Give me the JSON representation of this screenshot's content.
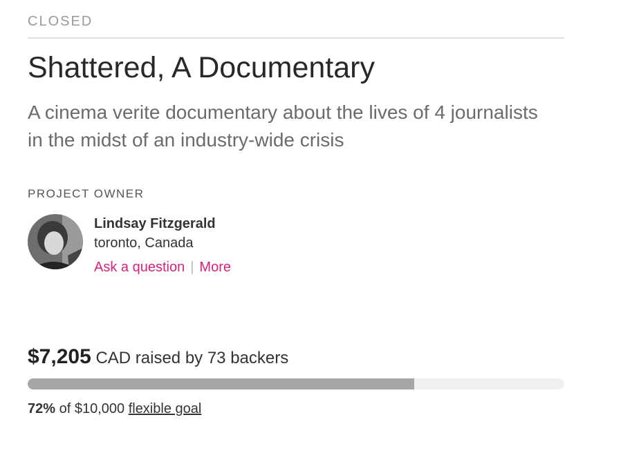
{
  "status": "CLOSED",
  "project": {
    "title": "Shattered, A Documentary",
    "description": "A cinema verite documentary about the lives of 4 journalists in the midst of an industry-wide crisis"
  },
  "owner": {
    "heading": "PROJECT OWNER",
    "name": "Lindsay Fitzgerald",
    "location": "toronto, Canada",
    "ask_link": "Ask a question",
    "separator": "|",
    "more_link": "More"
  },
  "funding": {
    "amount": "$7,205",
    "raised_text": "CAD raised by 73 backers"
  },
  "progress": {
    "value": 72,
    "label": "72%",
    "goal_text": "of $10,000",
    "goal_link": "flexible goal"
  }
}
